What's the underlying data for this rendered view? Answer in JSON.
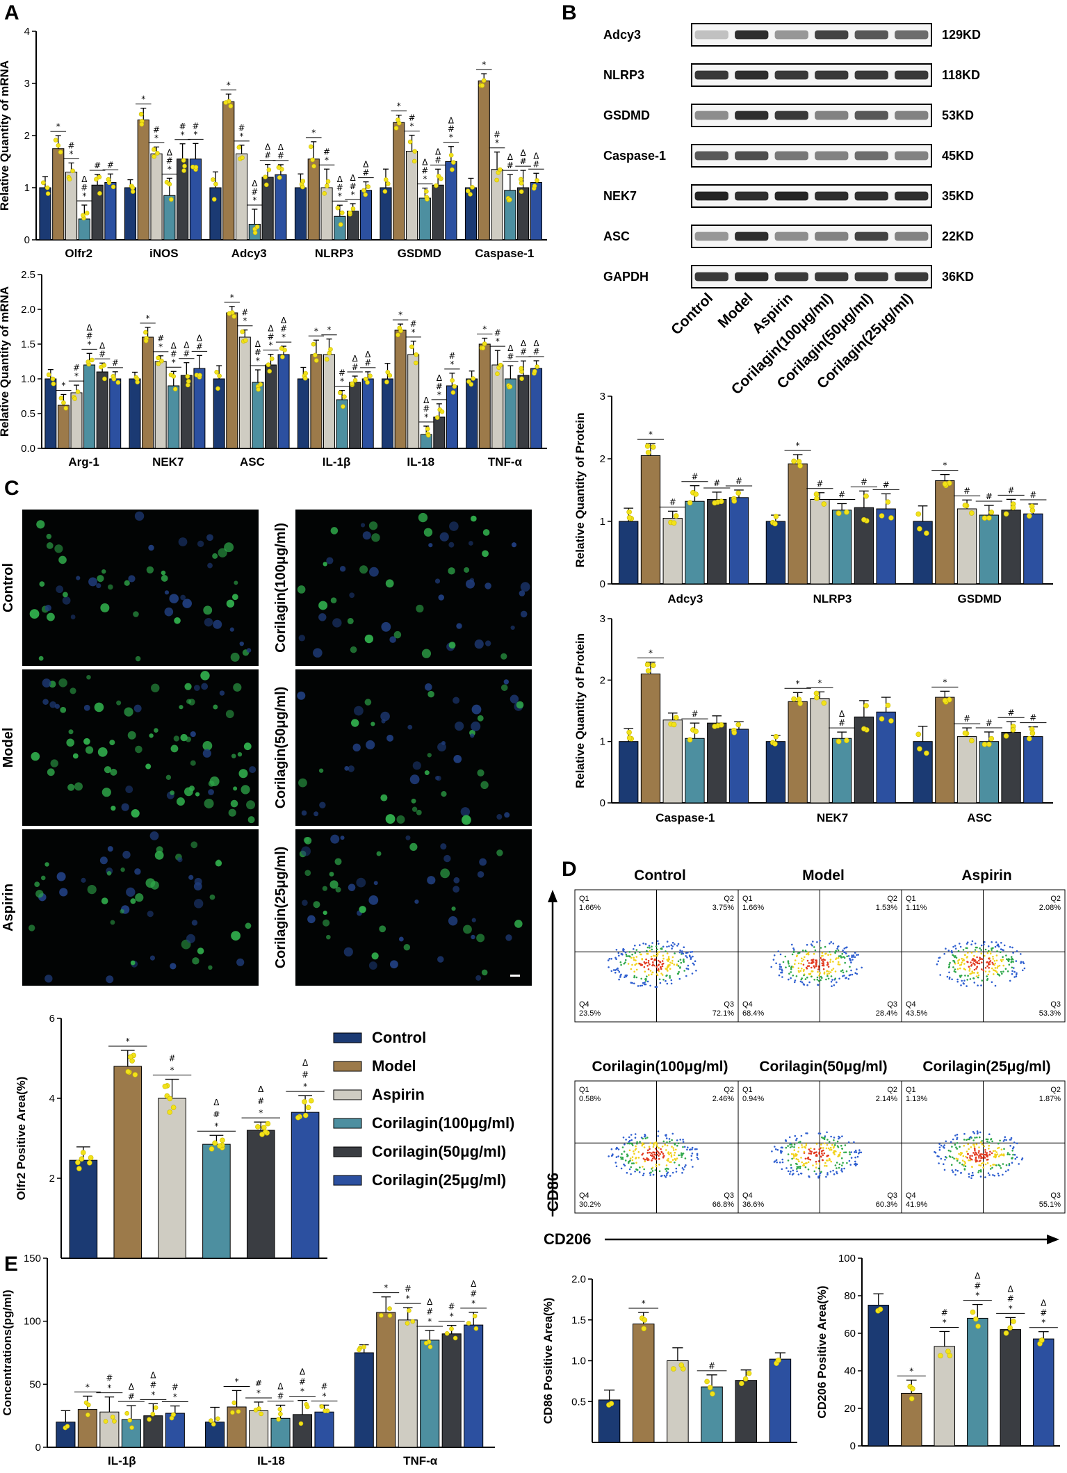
{
  "panels": {
    "A": "A",
    "B": "B",
    "C": "C",
    "D": "D",
    "E": "E"
  },
  "colors": [
    "#1b3a73",
    "#9c7a4a",
    "#cfccc2",
    "#4d8fa0",
    "#3a3d42",
    "#2c50a0"
  ],
  "legend": {
    "labels": [
      "Control",
      "Model",
      "Aspirin",
      "Corilagin(100μg/ml)",
      "Corilagin(50μg/ml)",
      "Corilagin(25μg/ml)"
    ]
  },
  "chart_data": [
    {
      "id": "A1",
      "type": "bar",
      "ylabel": "Relative Quantity of mRNA",
      "ylim": [
        0,
        4
      ],
      "yticks": [
        0,
        1,
        2,
        3,
        4
      ],
      "categories": [
        "Olfr2",
        "iNOS",
        "Adcy3",
        "NLRP3",
        "GSDMD",
        "Caspase-1"
      ],
      "series": [
        {
          "name": "Control",
          "values": [
            1.0,
            1.0,
            1.0,
            1.0,
            1.0,
            1.0
          ]
        },
        {
          "name": "Model",
          "values": [
            1.75,
            2.3,
            2.65,
            1.55,
            2.25,
            3.05
          ]
        },
        {
          "name": "Aspirin",
          "values": [
            1.3,
            1.65,
            1.65,
            1.0,
            1.7,
            1.35
          ]
        },
        {
          "name": "Corilagin(100μg/ml)",
          "values": [
            0.4,
            0.85,
            0.3,
            0.45,
            0.8,
            0.95
          ]
        },
        {
          "name": "Corilagin(50μg/ml)",
          "values": [
            1.05,
            1.55,
            1.2,
            0.55,
            1.05,
            1.0
          ]
        },
        {
          "name": "Corilagin(25μg/ml)",
          "values": [
            1.1,
            1.55,
            1.25,
            0.95,
            1.5,
            1.1
          ]
        }
      ],
      "annotations": [
        [
          "",
          "*",
          "#\n*",
          "Δ\n#\n*",
          "#",
          "#"
        ],
        [
          "",
          "*",
          "#\n*",
          "Δ\n#\n*",
          "#\n*",
          "#\n*"
        ],
        [
          "",
          "*",
          "#\n*",
          "Δ\n#\n*",
          "Δ\n#",
          "Δ\n#"
        ],
        [
          "",
          "*",
          "#\n*",
          "Δ\n#\n*",
          "Δ\n#\n*",
          "Δ\n#"
        ],
        [
          "",
          "*",
          "#\n*",
          "Δ\n#\n*",
          "Δ\n#",
          "Δ\n#\n*"
        ],
        [
          "",
          "*",
          "#\n*",
          "Δ\n#",
          "Δ\n#",
          "Δ\n#"
        ]
      ]
    },
    {
      "id": "A2",
      "type": "bar",
      "ylabel": "Relative Quantity of mRNA",
      "ylim": [
        0,
        2.5
      ],
      "yticks": [
        0.0,
        0.5,
        1.0,
        1.5,
        2.0,
        2.5
      ],
      "categories": [
        "Arg-1",
        "NEK7",
        "ASC",
        "IL-1β",
        "IL-18",
        "TNF-α"
      ],
      "series": [
        {
          "name": "Control",
          "values": [
            1.0,
            1.0,
            1.0,
            1.0,
            1.0,
            1.0
          ]
        },
        {
          "name": "Model",
          "values": [
            0.62,
            1.6,
            1.95,
            1.35,
            1.7,
            1.5
          ]
        },
        {
          "name": "Aspirin",
          "values": [
            0.8,
            1.25,
            1.6,
            1.35,
            1.35,
            1.2
          ]
        },
        {
          "name": "Corilagin(100μg/ml)",
          "values": [
            1.2,
            0.9,
            0.95,
            0.7,
            0.2,
            1.0
          ]
        },
        {
          "name": "Corilagin(50μg/ml)",
          "values": [
            1.1,
            1.05,
            1.2,
            0.95,
            0.45,
            1.05
          ]
        },
        {
          "name": "Corilagin(25μg/ml)",
          "values": [
            1.0,
            1.15,
            1.35,
            1.0,
            0.9,
            1.15
          ]
        }
      ],
      "annotations": [
        [
          "",
          "*",
          "#\n*",
          "Δ\n#\n*",
          "Δ\n#",
          "#"
        ],
        [
          "",
          "*",
          "#\n*",
          "Δ\n#\n*",
          "Δ\n#",
          "Δ\n#"
        ],
        [
          "",
          "*",
          "#\n*",
          "Δ\n#\n*",
          "Δ\n#\n*",
          "Δ\n#\n*"
        ],
        [
          "",
          "*",
          "*",
          "#\n*",
          "Δ\n#",
          "Δ\n#"
        ],
        [
          "",
          "*",
          "#\n*",
          "Δ\n#\n*",
          "Δ\n#\n*",
          "#\n*"
        ],
        [
          "",
          "*",
          "#\n*",
          "Δ\n#",
          "Δ\n#",
          "Δ\n#"
        ]
      ]
    },
    {
      "id": "B1",
      "type": "bar",
      "ylabel": "Relative Quantity of Protein",
      "ylim": [
        0,
        3
      ],
      "yticks": [
        0,
        1,
        2,
        3
      ],
      "categories": [
        "Adcy3",
        "NLRP3",
        "GSDMD"
      ],
      "series": [
        {
          "name": "Control",
          "values": [
            1.0,
            1.0,
            1.0
          ]
        },
        {
          "name": "Model",
          "values": [
            2.05,
            1.92,
            1.65
          ]
        },
        {
          "name": "Aspirin",
          "values": [
            1.05,
            1.35,
            1.2
          ]
        },
        {
          "name": "Corilagin(100μg/ml)",
          "values": [
            1.32,
            1.18,
            1.1
          ]
        },
        {
          "name": "Corilagin(50μg/ml)",
          "values": [
            1.35,
            1.22,
            1.18
          ]
        },
        {
          "name": "Corilagin(25μg/ml)",
          "values": [
            1.38,
            1.2,
            1.12
          ]
        }
      ],
      "annotations": [
        [
          "",
          "*",
          "#",
          "#",
          "#",
          "#"
        ],
        [
          "",
          "*",
          "#",
          "#",
          "#",
          "#"
        ],
        [
          "",
          "*",
          "#",
          "#",
          "#",
          "#"
        ]
      ]
    },
    {
      "id": "B2",
      "type": "bar",
      "ylabel": "Relative Quantity of Protein",
      "ylim": [
        0,
        3
      ],
      "yticks": [
        0,
        1,
        2,
        3
      ],
      "categories": [
        "Caspase-1",
        "NEK7",
        "ASC"
      ],
      "series": [
        {
          "name": "Control",
          "values": [
            1.0,
            1.0,
            1.0
          ]
        },
        {
          "name": "Model",
          "values": [
            2.1,
            1.65,
            1.72
          ]
        },
        {
          "name": "Aspirin",
          "values": [
            1.35,
            1.7,
            1.08
          ]
        },
        {
          "name": "Corilagin(100μg/ml)",
          "values": [
            1.05,
            1.05,
            1.0
          ]
        },
        {
          "name": "Corilagin(50μg/ml)",
          "values": [
            1.3,
            1.4,
            1.15
          ]
        },
        {
          "name": "Corilagin(25μg/ml)",
          "values": [
            1.2,
            1.48,
            1.08
          ]
        }
      ],
      "annotations": [
        [
          "",
          "*",
          "",
          "#",
          "",
          ""
        ],
        [
          "",
          "*",
          "*",
          "Δ\n#",
          "",
          ""
        ],
        [
          "",
          "*",
          "#",
          "#",
          "#",
          "#"
        ]
      ]
    },
    {
      "id": "C",
      "type": "bar",
      "ylabel": "Olfr2 Positive Area(%)",
      "ylim": [
        0,
        6
      ],
      "yticks": [
        2,
        4,
        6
      ],
      "categories": [
        "Control",
        "Model",
        "Aspirin",
        "Corilagin(100μg/ml)",
        "Corilagin(50μg/ml)",
        "Corilagin(25μg/ml)"
      ],
      "values": [
        2.45,
        4.8,
        4.0,
        2.85,
        3.2,
        3.65
      ],
      "annotations": [
        "",
        "*",
        "#\n*",
        "Δ\n#\n*",
        "Δ\n#\n*",
        "Δ\n#\n*"
      ]
    },
    {
      "id": "E1",
      "type": "bar",
      "ylabel": "Concentrations(pg/ml)",
      "ylim": [
        0,
        150
      ],
      "yticks": [
        0,
        50,
        100,
        150
      ],
      "categories": [
        "IL-1β",
        "IL-18",
        "TNF-α"
      ],
      "series": [
        {
          "name": "Control",
          "values": [
            20,
            20,
            75
          ]
        },
        {
          "name": "Model",
          "values": [
            30,
            32,
            107
          ]
        },
        {
          "name": "Aspirin",
          "values": [
            28,
            29,
            101
          ]
        },
        {
          "name": "Corilagin(100μg/ml)",
          "values": [
            22,
            23,
            85
          ]
        },
        {
          "name": "Corilagin(50μg/ml)",
          "values": [
            25,
            26,
            90
          ]
        },
        {
          "name": "Corilagin(25μg/ml)",
          "values": [
            27,
            28,
            97
          ]
        }
      ],
      "annotations": [
        [
          "",
          "*",
          "#\n*",
          "Δ\n#",
          "Δ\n#\n*",
          "#\n*"
        ],
        [
          "",
          "*",
          "#\n*",
          "Δ\n#",
          "Δ\n#\n*",
          "#\n*"
        ],
        [
          "",
          "*",
          "#\n*",
          "Δ\n#\n*",
          "#\n*",
          "Δ\n#\n*"
        ]
      ]
    },
    {
      "id": "E2",
      "type": "bar",
      "ylabel": "CD86 Positive Area(%)",
      "ylim": [
        0,
        2.0
      ],
      "yticks": [
        0.5,
        1.0,
        1.5,
        2.0
      ],
      "categories": [
        "Control",
        "Model",
        "Aspirin",
        "Corilagin(100μg/ml)",
        "Corilagin(50μg/ml)",
        "Corilagin(25μg/ml)"
      ],
      "values": [
        0.52,
        1.45,
        1.0,
        0.68,
        0.76,
        1.02
      ],
      "annotations": [
        "",
        "*",
        "",
        "#",
        "",
        ""
      ]
    },
    {
      "id": "E3",
      "type": "bar",
      "ylabel": "CD206 Positive Area(%)",
      "ylim": [
        0,
        100
      ],
      "yticks": [
        0,
        20,
        40,
        60,
        80,
        100
      ],
      "categories": [
        "Control",
        "Model",
        "Aspirin",
        "Corilagin(100μg/ml)",
        "Corilagin(50μg/ml)",
        "Corilagin(25μg/ml)"
      ],
      "values": [
        75,
        28,
        53,
        68,
        62,
        57
      ],
      "annotations": [
        "",
        "*",
        "#\n*",
        "Δ\n#\n*",
        "Δ\n#\n*",
        "Δ\n#\n*"
      ]
    }
  ],
  "blot": {
    "proteins": [
      "Adcy3",
      "NLRP3",
      "GSDMD",
      "Caspase-1",
      "NEK7",
      "ASC",
      "GAPDH"
    ],
    "sizes": [
      "129KD",
      "118KD",
      "53KD",
      "45KD",
      "35KD",
      "22KD",
      "36KD"
    ],
    "lanes": [
      "Control",
      "Model",
      "Aspirin",
      "Corilagin(100μg/ml)",
      "Corilagin(50μg/ml)",
      "Corilagin(25μg/ml)"
    ],
    "intensity": [
      [
        0.2,
        0.9,
        0.4,
        0.8,
        0.7,
        0.6
      ],
      [
        0.85,
        0.9,
        0.85,
        0.85,
        0.85,
        0.85
      ],
      [
        0.45,
        0.9,
        0.85,
        0.5,
        0.7,
        0.5
      ],
      [
        0.7,
        0.75,
        0.55,
        0.5,
        0.6,
        0.5
      ],
      [
        0.95,
        0.9,
        0.95,
        0.9,
        0.9,
        0.9
      ],
      [
        0.4,
        0.9,
        0.45,
        0.5,
        0.8,
        0.5
      ],
      [
        0.85,
        0.9,
        0.85,
        0.85,
        0.85,
        0.85
      ]
    ]
  },
  "micro": {
    "labels": [
      "Control",
      "Model",
      "Aspirin",
      "Corilagin(100μg/ml)",
      "Corilagin(50μg/ml)",
      "Corilagin(25μg/ml)"
    ]
  },
  "flow": {
    "titles": [
      "Control",
      "Model",
      "Aspirin",
      "Corilagin(100μg/ml)",
      "Corilagin(50μg/ml)",
      "Corilagin(25μg/ml)"
    ],
    "quadrants": [
      {
        "q1": "1.66%",
        "q2": "3.75%",
        "q3": "72.1%",
        "q4": "23.5%"
      },
      {
        "q1": "1.66%",
        "q2": "1.53%",
        "q3": "28.4%",
        "q4": "68.4%"
      },
      {
        "q1": "1.11%",
        "q2": "2.08%",
        "q3": "53.3%",
        "q4": "43.5%"
      },
      {
        "q1": "0.58%",
        "q2": "2.46%",
        "q3": "66.8%",
        "q4": "30.2%"
      },
      {
        "q1": "0.94%",
        "q2": "2.14%",
        "q3": "60.3%",
        "q4": "36.6%"
      },
      {
        "q1": "1.13%",
        "q2": "1.87%",
        "q3": "55.1%",
        "q4": "41.9%"
      }
    ],
    "q_names": [
      "Q1",
      "Q2",
      "Q3",
      "Q4"
    ],
    "xaxis": "CD206",
    "yaxis": "CD86"
  }
}
